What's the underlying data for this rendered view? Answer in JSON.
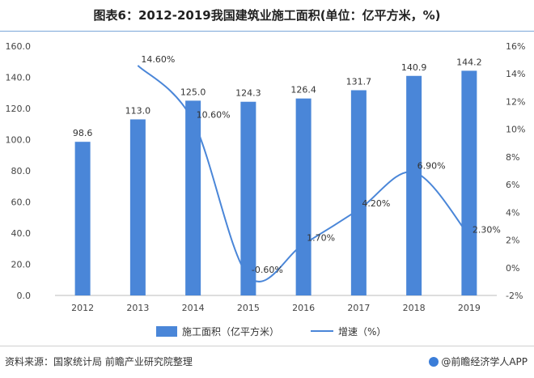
{
  "title": "图表6：2012-2019我国建筑业施工面积(单位：亿平方米，%)",
  "footer": {
    "source": "资料来源：国家统计局 前瞻产业研究院整理",
    "brand": "@前瞻经济学人APP"
  },
  "colors": {
    "bar": "#4a86d8",
    "line": "#4a86d8"
  },
  "chart_data": {
    "type": "bar",
    "categories": [
      "2012",
      "2013",
      "2014",
      "2015",
      "2016",
      "2017",
      "2018",
      "2019"
    ],
    "series": [
      {
        "name": "施工面积（亿平方米）",
        "type": "bar",
        "axis": "left",
        "values": [
          98.6,
          113.0,
          125.0,
          124.3,
          126.4,
          131.7,
          140.9,
          144.2
        ],
        "labels": [
          "98.6",
          "113.0",
          "125.0",
          "124.3",
          "126.4",
          "131.7",
          "140.9",
          "144.2"
        ]
      },
      {
        "name": "增速（%）",
        "type": "line",
        "axis": "right",
        "values": [
          null,
          14.6,
          10.6,
          -0.6,
          1.7,
          4.2,
          6.9,
          2.3
        ],
        "labels": [
          null,
          "14.60%",
          "10.60%",
          "-0.60%",
          "1.70%",
          "4.20%",
          "6.90%",
          "2.30%"
        ]
      }
    ],
    "left_axis": {
      "min": 0,
      "max": 160,
      "step": 20,
      "tick_labels": [
        "0.0",
        "20.0",
        "40.0",
        "60.0",
        "80.0",
        "100.0",
        "120.0",
        "140.0",
        "160.0"
      ]
    },
    "right_axis": {
      "min": -2,
      "max": 16,
      "step": 2,
      "tick_labels": [
        "-2%",
        "0%",
        "2%",
        "4%",
        "6%",
        "8%",
        "10%",
        "12%",
        "14%",
        "16%"
      ]
    },
    "grid": false,
    "legend_position": "bottom"
  }
}
